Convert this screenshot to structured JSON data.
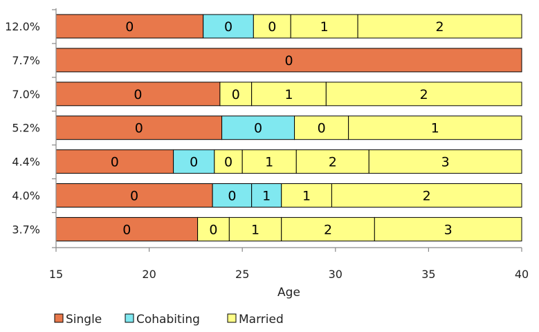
{
  "chart_data": {
    "type": "bar",
    "orientation": "horizontal",
    "stacked": true,
    "title": "",
    "xlabel": "Age",
    "ylabel": "",
    "xlim": [
      15,
      40
    ],
    "x_ticks": [
      15,
      20,
      25,
      30,
      35,
      40
    ],
    "grid": false,
    "legend_position": "bottom-left",
    "colors": {
      "Single": "#e8784b",
      "Cohabiting": "#80e8f0",
      "Married": "#ffff88",
      "border": "#000000"
    },
    "legend": [
      {
        "name": "Single",
        "color": "#e8784b"
      },
      {
        "name": "Cohabiting",
        "color": "#80e8f0"
      },
      {
        "name": "Married",
        "color": "#ffff88"
      }
    ],
    "rows": [
      {
        "category": "12.0%",
        "segments": [
          {
            "status": "Single",
            "start": 15,
            "end": 22.9,
            "label": "0"
          },
          {
            "status": "Cohabiting",
            "start": 22.9,
            "end": 25.6,
            "label": "0"
          },
          {
            "status": "Married",
            "start": 25.6,
            "end": 27.6,
            "label": "0"
          },
          {
            "status": "Married",
            "start": 27.6,
            "end": 31.2,
            "label": "1"
          },
          {
            "status": "Married",
            "start": 31.2,
            "end": 40,
            "label": "2"
          }
        ]
      },
      {
        "category": "7.7%",
        "segments": [
          {
            "status": "Single",
            "start": 15,
            "end": 40,
            "label": "0"
          }
        ]
      },
      {
        "category": "7.0%",
        "segments": [
          {
            "status": "Single",
            "start": 15,
            "end": 23.8,
            "label": "0"
          },
          {
            "status": "Married",
            "start": 23.8,
            "end": 25.5,
            "label": "0"
          },
          {
            "status": "Married",
            "start": 25.5,
            "end": 29.5,
            "label": "1"
          },
          {
            "status": "Married",
            "start": 29.5,
            "end": 40,
            "label": "2"
          }
        ]
      },
      {
        "category": "5.2%",
        "segments": [
          {
            "status": "Single",
            "start": 15,
            "end": 23.9,
            "label": "0"
          },
          {
            "status": "Cohabiting",
            "start": 23.9,
            "end": 27.8,
            "label": "0"
          },
          {
            "status": "Married",
            "start": 27.8,
            "end": 30.7,
            "label": "0"
          },
          {
            "status": "Married",
            "start": 30.7,
            "end": 40,
            "label": "1"
          }
        ]
      },
      {
        "category": "4.4%",
        "segments": [
          {
            "status": "Single",
            "start": 15,
            "end": 21.3,
            "label": "0"
          },
          {
            "status": "Cohabiting",
            "start": 21.3,
            "end": 23.5,
            "label": "0"
          },
          {
            "status": "Married",
            "start": 23.5,
            "end": 25,
            "label": "0"
          },
          {
            "status": "Married",
            "start": 25,
            "end": 27.9,
            "label": "1"
          },
          {
            "status": "Married",
            "start": 27.9,
            "end": 31.8,
            "label": "2"
          },
          {
            "status": "Married",
            "start": 31.8,
            "end": 40,
            "label": "3"
          }
        ]
      },
      {
        "category": "4.0%",
        "segments": [
          {
            "status": "Single",
            "start": 15,
            "end": 23.4,
            "label": "0"
          },
          {
            "status": "Cohabiting",
            "start": 23.4,
            "end": 25.5,
            "label": "0"
          },
          {
            "status": "Cohabiting",
            "start": 25.5,
            "end": 27.1,
            "label": "1"
          },
          {
            "status": "Married",
            "start": 27.1,
            "end": 29.8,
            "label": "1"
          },
          {
            "status": "Married",
            "start": 29.8,
            "end": 40,
            "label": "2"
          }
        ]
      },
      {
        "category": "3.7%",
        "segments": [
          {
            "status": "Single",
            "start": 15,
            "end": 22.6,
            "label": "0"
          },
          {
            "status": "Married",
            "start": 22.6,
            "end": 24.3,
            "label": "0"
          },
          {
            "status": "Married",
            "start": 24.3,
            "end": 27.1,
            "label": "1"
          },
          {
            "status": "Married",
            "start": 27.1,
            "end": 32.1,
            "label": "2"
          },
          {
            "status": "Married",
            "start": 32.1,
            "end": 40,
            "label": "3"
          }
        ]
      }
    ]
  }
}
